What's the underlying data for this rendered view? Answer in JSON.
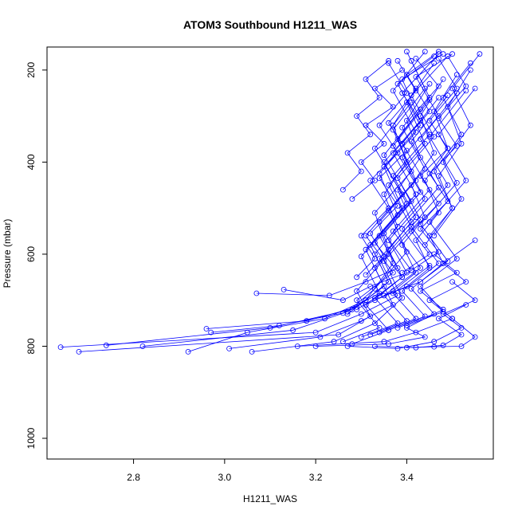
{
  "chart_data": {
    "type": "line",
    "title": "ATOM3 Southbound H1211_WAS",
    "xlabel": "H1211_WAS",
    "ylabel": "Pressure (mbar)",
    "xlim": [
      2.61,
      3.59
    ],
    "ylim": [
      1045,
      150
    ],
    "y_reversed": true,
    "x_ticks": [
      2.8,
      3.0,
      3.2,
      3.4
    ],
    "x_tick_labels": [
      "2.8",
      "3.0",
      "3.2",
      "3.4"
    ],
    "y_ticks": [
      200,
      400,
      600,
      800,
      1000
    ],
    "y_tick_labels": [
      "200",
      "400",
      "600",
      "800",
      "1000"
    ],
    "grid": false,
    "legend": "none",
    "color": "#0000ff",
    "marker": "open-circle",
    "series": [
      {
        "x": [
          2.64,
          3.2,
          3.3,
          3.38,
          3.34,
          3.42,
          3.37,
          3.45,
          3.39,
          3.47
        ],
        "y": [
          802,
          770,
          730,
          690,
          610,
          520,
          430,
          340,
          250,
          165
        ]
      },
      {
        "x": [
          2.68,
          3.25,
          3.32,
          3.29,
          3.36,
          3.33,
          3.41,
          3.37,
          3.44,
          3.4
        ],
        "y": [
          812,
          775,
          735,
          680,
          600,
          510,
          420,
          330,
          240,
          160
        ]
      },
      {
        "x": [
          2.74,
          3.1,
          3.28,
          3.35,
          3.31,
          3.39,
          3.35,
          3.43,
          3.38,
          3.46
        ],
        "y": [
          798,
          760,
          720,
          670,
          590,
          500,
          410,
          320,
          230,
          170
        ]
      },
      {
        "x": [
          2.82,
          3.15,
          3.27,
          3.33,
          3.4,
          3.36,
          3.44,
          3.39,
          3.47,
          3.42
        ],
        "y": [
          800,
          765,
          725,
          675,
          595,
          505,
          415,
          325,
          235,
          175
        ]
      },
      {
        "x": [
          2.92,
          3.05,
          3.22,
          3.31,
          3.37,
          3.34,
          3.42,
          3.38,
          3.45,
          3.41
        ],
        "y": [
          812,
          770,
          740,
          700,
          620,
          530,
          440,
          350,
          260,
          180
        ]
      },
      {
        "x": [
          2.96,
          3.18,
          3.29,
          3.36,
          3.32,
          3.4,
          3.35,
          3.43,
          3.39,
          3.48
        ],
        "y": [
          762,
          745,
          715,
          660,
          580,
          490,
          400,
          310,
          220,
          165
        ]
      },
      {
        "x": [
          2.97,
          3.12,
          3.26,
          3.34,
          3.3,
          3.38,
          3.34,
          3.42,
          3.37,
          3.44
        ],
        "y": [
          770,
          755,
          728,
          685,
          605,
          515,
          425,
          335,
          245,
          160
        ]
      },
      {
        "x": [
          3.01,
          3.21,
          3.3,
          3.37,
          3.33,
          3.41,
          3.36,
          3.44,
          3.4,
          3.46
        ],
        "y": [
          805,
          780,
          745,
          710,
          630,
          540,
          450,
          360,
          270,
          185
        ]
      },
      {
        "x": [
          3.06,
          3.24,
          3.33,
          3.39,
          3.35,
          3.43,
          3.38,
          3.46,
          3.41,
          3.49
        ],
        "y": [
          812,
          790,
          750,
          695,
          615,
          525,
          435,
          345,
          255,
          170
        ]
      },
      {
        "x": [
          3.07,
          3.23,
          3.31,
          3.38,
          3.34,
          3.42,
          3.37,
          3.45,
          3.4,
          3.47
        ],
        "y": [
          685,
          690,
          660,
          630,
          560,
          470,
          380,
          290,
          210,
          160
        ]
      },
      {
        "x": [
          3.13,
          3.26,
          3.32,
          3.4,
          3.36,
          3.44,
          3.39,
          3.47,
          3.42,
          3.5
        ],
        "y": [
          677,
          700,
          670,
          640,
          570,
          480,
          390,
          300,
          215,
          165
        ]
      },
      {
        "x": [
          3.16,
          3.35,
          3.42,
          3.5,
          3.45,
          3.53,
          3.48,
          3.55
        ],
        "y": [
          800,
          790,
          770,
          740,
          700,
          660,
          620,
          570
        ]
      },
      {
        "x": [
          3.2,
          3.36,
          3.44,
          3.4,
          3.48,
          3.43,
          3.51,
          3.46
        ],
        "y": [
          800,
          795,
          780,
          760,
          720,
          680,
          640,
          600
        ]
      },
      {
        "x": [
          3.27,
          3.38,
          3.46,
          3.52,
          3.48,
          3.55,
          3.5
        ],
        "y": [
          800,
          805,
          790,
          760,
          730,
          700,
          660
        ]
      },
      {
        "x": [
          3.33,
          3.42,
          3.48,
          3.52,
          3.47,
          3.53
        ],
        "y": [
          800,
          803,
          798,
          775,
          740,
          710
        ]
      },
      {
        "x": [
          3.4,
          3.46,
          3.52,
          3.55,
          3.5
        ],
        "y": [
          803,
          801,
          800,
          780,
          740
        ]
      },
      {
        "x": [
          3.26,
          3.34,
          3.29,
          3.37,
          3.31,
          3.39,
          3.33,
          3.41
        ],
        "y": [
          790,
          760,
          700,
          640,
          560,
          470,
          370,
          270
        ]
      },
      {
        "x": [
          3.28,
          3.36,
          3.31,
          3.39,
          3.33,
          3.41,
          3.35,
          3.43
        ],
        "y": [
          795,
          765,
          710,
          650,
          575,
          485,
          385,
          285
        ]
      },
      {
        "x": [
          3.3,
          3.38,
          3.33,
          3.41,
          3.35,
          3.43,
          3.37,
          3.45
        ],
        "y": [
          780,
          750,
          695,
          635,
          555,
          465,
          365,
          265
        ]
      },
      {
        "x": [
          3.32,
          3.4,
          3.35,
          3.43,
          3.37,
          3.45,
          3.39,
          3.47
        ],
        "y": [
          775,
          745,
          690,
          630,
          550,
          460,
          360,
          260
        ]
      },
      {
        "x": [
          3.34,
          3.42,
          3.37,
          3.45,
          3.39,
          3.47,
          3.41,
          3.49
        ],
        "y": [
          770,
          740,
          685,
          625,
          545,
          455,
          355,
          255
        ]
      },
      {
        "x": [
          3.36,
          3.44,
          3.39,
          3.47,
          3.41,
          3.49,
          3.43,
          3.51
        ],
        "y": [
          765,
          735,
          680,
          620,
          540,
          450,
          350,
          250
        ]
      },
      {
        "x": [
          3.38,
          3.46,
          3.41,
          3.49,
          3.43,
          3.51,
          3.45,
          3.53
        ],
        "y": [
          760,
          730,
          675,
          615,
          535,
          445,
          345,
          245
        ]
      },
      {
        "x": [
          3.4,
          3.48,
          3.43,
          3.51,
          3.45,
          3.53,
          3.47,
          3.55
        ],
        "y": [
          755,
          725,
          670,
          610,
          530,
          440,
          340,
          240
        ]
      },
      {
        "x": [
          3.27,
          3.31,
          3.36,
          3.33,
          3.38,
          3.35,
          3.4,
          3.37,
          3.42
        ],
        "y": [
          730,
          700,
          660,
          600,
          540,
          470,
          400,
          320,
          240
        ]
      },
      {
        "x": [
          3.29,
          3.34,
          3.39,
          3.36,
          3.41,
          3.38,
          3.43,
          3.4,
          3.45
        ],
        "y": [
          720,
          690,
          650,
          590,
          530,
          460,
          390,
          310,
          230
        ]
      },
      {
        "x": [
          3.31,
          3.37,
          3.42,
          3.39,
          3.44,
          3.41,
          3.46,
          3.43,
          3.48
        ],
        "y": [
          710,
          680,
          640,
          580,
          520,
          450,
          380,
          300,
          220
        ]
      },
      {
        "x": [
          3.33,
          3.4,
          3.45,
          3.42,
          3.47,
          3.44,
          3.49,
          3.46,
          3.51
        ],
        "y": [
          700,
          670,
          630,
          570,
          510,
          440,
          370,
          290,
          210
        ]
      },
      {
        "x": [
          3.35,
          3.43,
          3.48,
          3.45,
          3.5,
          3.47,
          3.52,
          3.49,
          3.54
        ],
        "y": [
          690,
          660,
          620,
          560,
          500,
          430,
          360,
          280,
          200
        ]
      },
      {
        "x": [
          3.29,
          3.33,
          3.3,
          3.36,
          3.32,
          3.38,
          3.34,
          3.4,
          3.36
        ],
        "y": [
          650,
          610,
          560,
          500,
          440,
          380,
          320,
          250,
          185
        ]
      },
      {
        "x": [
          3.31,
          3.35,
          3.32,
          3.38,
          3.34,
          3.4,
          3.36,
          3.42,
          3.38
        ],
        "y": [
          645,
          605,
          555,
          495,
          435,
          375,
          315,
          245,
          180
        ]
      },
      {
        "x": [
          3.39,
          3.45,
          3.41,
          3.47,
          3.43,
          3.49,
          3.45,
          3.51,
          3.47
        ],
        "y": [
          640,
          600,
          550,
          490,
          430,
          370,
          310,
          240,
          175
        ]
      },
      {
        "x": [
          3.41,
          3.47,
          3.43,
          3.49,
          3.45,
          3.51,
          3.47,
          3.53,
          3.49
        ],
        "y": [
          635,
          595,
          545,
          485,
          425,
          365,
          305,
          235,
          170
        ]
      },
      {
        "x": [
          3.26,
          3.3,
          3.27,
          3.32,
          3.29,
          3.34,
          3.31,
          3.36
        ],
        "y": [
          460,
          420,
          380,
          340,
          300,
          260,
          220,
          180
        ]
      },
      {
        "x": [
          3.28,
          3.33,
          3.3,
          3.35,
          3.31,
          3.37,
          3.33,
          3.39
        ],
        "y": [
          480,
          440,
          400,
          360,
          320,
          280,
          240,
          200
        ]
      },
      {
        "x": [
          3.46,
          3.52,
          3.48,
          3.54,
          3.5,
          3.56
        ],
        "y": [
          560,
          480,
          400,
          320,
          240,
          165
        ]
      },
      {
        "x": [
          3.44,
          3.5,
          3.46,
          3.52,
          3.48,
          3.54
        ],
        "y": [
          580,
          500,
          420,
          340,
          260,
          185
        ]
      }
    ]
  }
}
